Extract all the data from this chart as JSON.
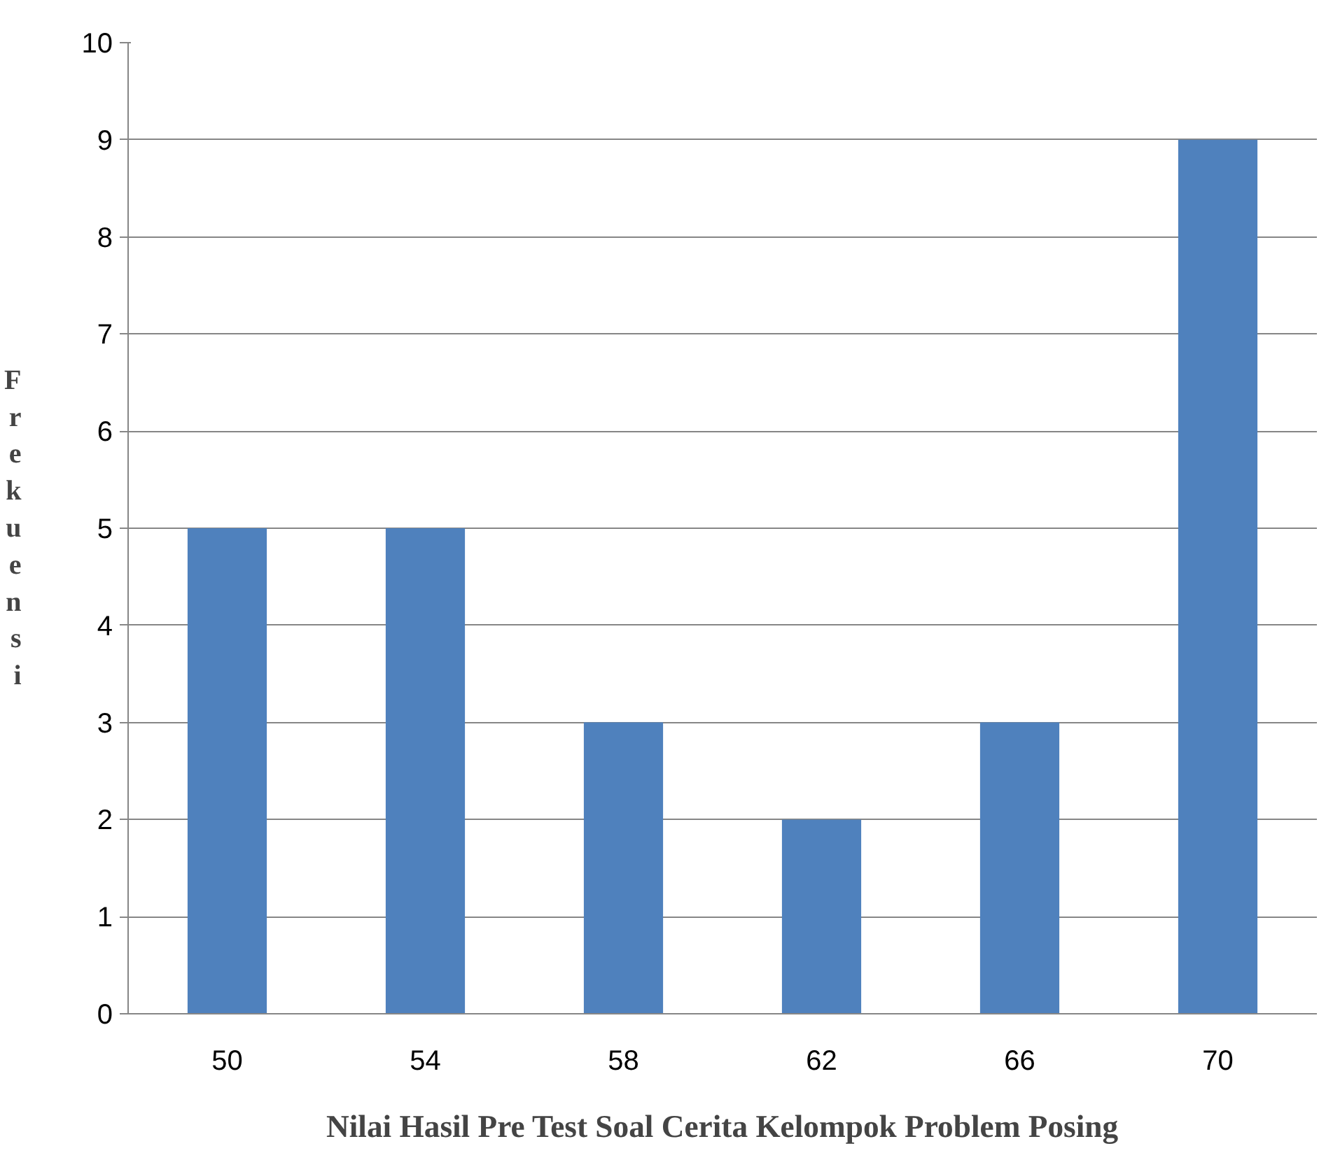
{
  "chart_data": {
    "type": "bar",
    "xlabel": "Nilai Hasil Pre Test Soal Cerita Kelompok Problem Posing",
    "ylabel": "Frekuensi",
    "categories": [
      "50",
      "54",
      "58",
      "62",
      "66",
      "70"
    ],
    "values": [
      5,
      5,
      3,
      2,
      3,
      9
    ],
    "color": "#4f81bd",
    "ylim": [
      0,
      10
    ],
    "yticks": [
      0,
      1,
      2,
      3,
      4,
      5,
      6,
      7,
      8,
      9,
      10
    ],
    "grid": "y"
  }
}
